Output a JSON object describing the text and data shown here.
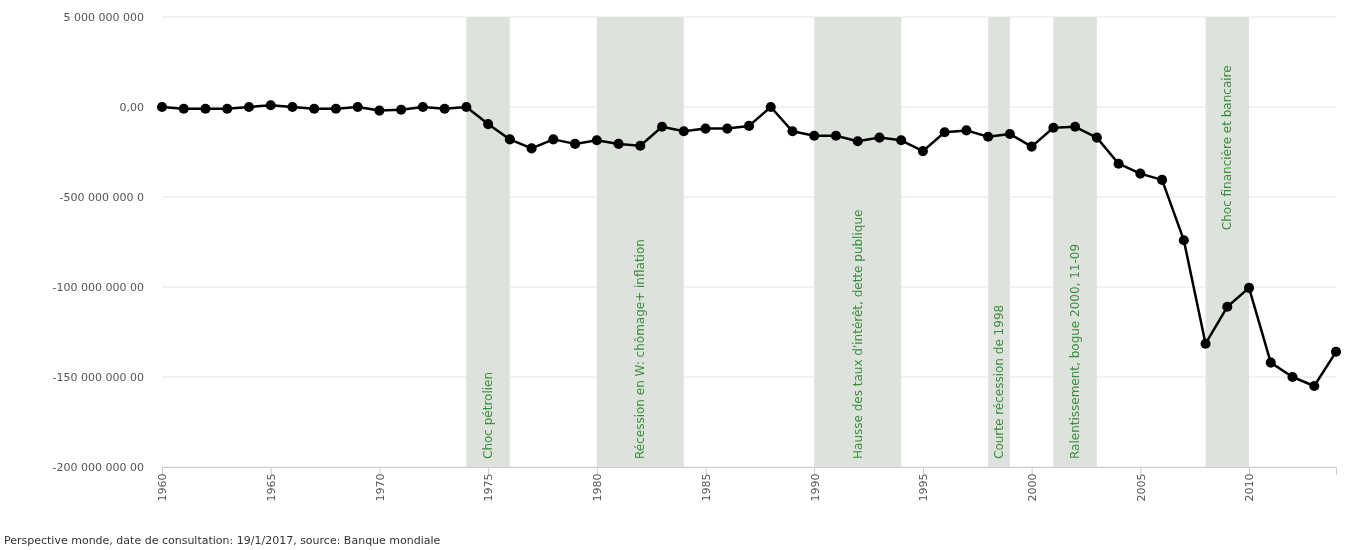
{
  "chart_data": {
    "type": "line",
    "x": [
      1960,
      1961,
      1962,
      1963,
      1964,
      1965,
      1966,
      1967,
      1968,
      1969,
      1970,
      1971,
      1972,
      1973,
      1974,
      1975,
      1976,
      1977,
      1978,
      1979,
      1980,
      1981,
      1982,
      1983,
      1984,
      1985,
      1986,
      1987,
      1988,
      1989,
      1990,
      1991,
      1992,
      1993,
      1994,
      1995,
      1996,
      1997,
      1998,
      1999,
      2000,
      2001,
      2002,
      2003,
      2004,
      2005,
      2006,
      2007,
      2008,
      2009,
      2010,
      2011,
      2012,
      2013,
      2014
    ],
    "series": [
      {
        "color": "#000000",
        "values": [
          0,
          -100000000,
          -100000000,
          -100000000,
          0,
          100000000,
          0,
          -100000000,
          -100000000,
          0,
          -200000000,
          -150000000,
          0,
          -100000000,
          0,
          -950000000,
          -1800000000,
          -2300000000,
          -1800000000,
          -2050000000,
          -1850000000,
          -2050000000,
          -2150000000,
          -1100000000,
          -1350000000,
          -1200000000,
          -1200000000,
          -1050000000,
          0,
          -1350000000,
          -1600000000,
          -1600000000,
          -1900000000,
          -1700000000,
          -1850000000,
          -2450000000,
          -1400000000,
          -1300000000,
          -1650000000,
          -1500000000,
          -2200000000,
          -1150000000,
          -1100000000,
          -1700000000,
          -3150000000,
          -3700000000,
          -4050000000,
          -7400000000,
          -13150000000,
          -11100000000,
          -10050000000,
          -14200000000,
          -15000000000,
          -15500000000,
          -13600000000
        ]
      }
    ],
    "xlim": [
      1960,
      2014
    ],
    "xticks": [
      1960,
      1965,
      1970,
      1975,
      1980,
      1985,
      1990,
      1995,
      2000,
      2005,
      2010
    ],
    "ylim": [
      -20000000000,
      5000000000
    ],
    "yticks": [
      {
        "value": 5000000000,
        "label": "5 000 000 000"
      },
      {
        "value": 0,
        "label": "0,00"
      },
      {
        "value": -5000000000,
        "label": "-500 000 000 0"
      },
      {
        "value": -10000000000,
        "label": "-100 000 000 00"
      },
      {
        "value": -15000000000,
        "label": "-150 000 000 00"
      },
      {
        "value": -20000000000,
        "label": "-200 000 000 00"
      }
    ],
    "grid": "y",
    "marker": "circle",
    "line_style": "solid",
    "bands": [
      {
        "axis": "x",
        "from": 1974,
        "to": 1976,
        "label": "Choc pétrolien",
        "color": "#dde3dc"
      },
      {
        "axis": "x",
        "from": 1980,
        "to": 1984,
        "label": "Récession en W: chômage+ inflation",
        "color": "#dde3dc"
      },
      {
        "axis": "x",
        "from": 1990,
        "to": 1994,
        "label": "Hausse des taux d'intérêt, dette publique",
        "color": "#dde3dc"
      },
      {
        "axis": "x",
        "from": 1998,
        "to": 1999,
        "label": "Courte récession de 1998",
        "color": "#dde3dc"
      },
      {
        "axis": "x",
        "from": 2001,
        "to": 2003,
        "label": "Ralentissement, bogue 2000, 11-09",
        "color": "#dde3dc"
      },
      {
        "axis": "x",
        "from": 2008,
        "to": 2010,
        "label": "Choc financière et bancaire",
        "color": "#dde3dc"
      }
    ],
    "annotations": [
      "Perspective monde, date de consultation: 19/1/2017, source: Banque mondiale"
    ]
  }
}
